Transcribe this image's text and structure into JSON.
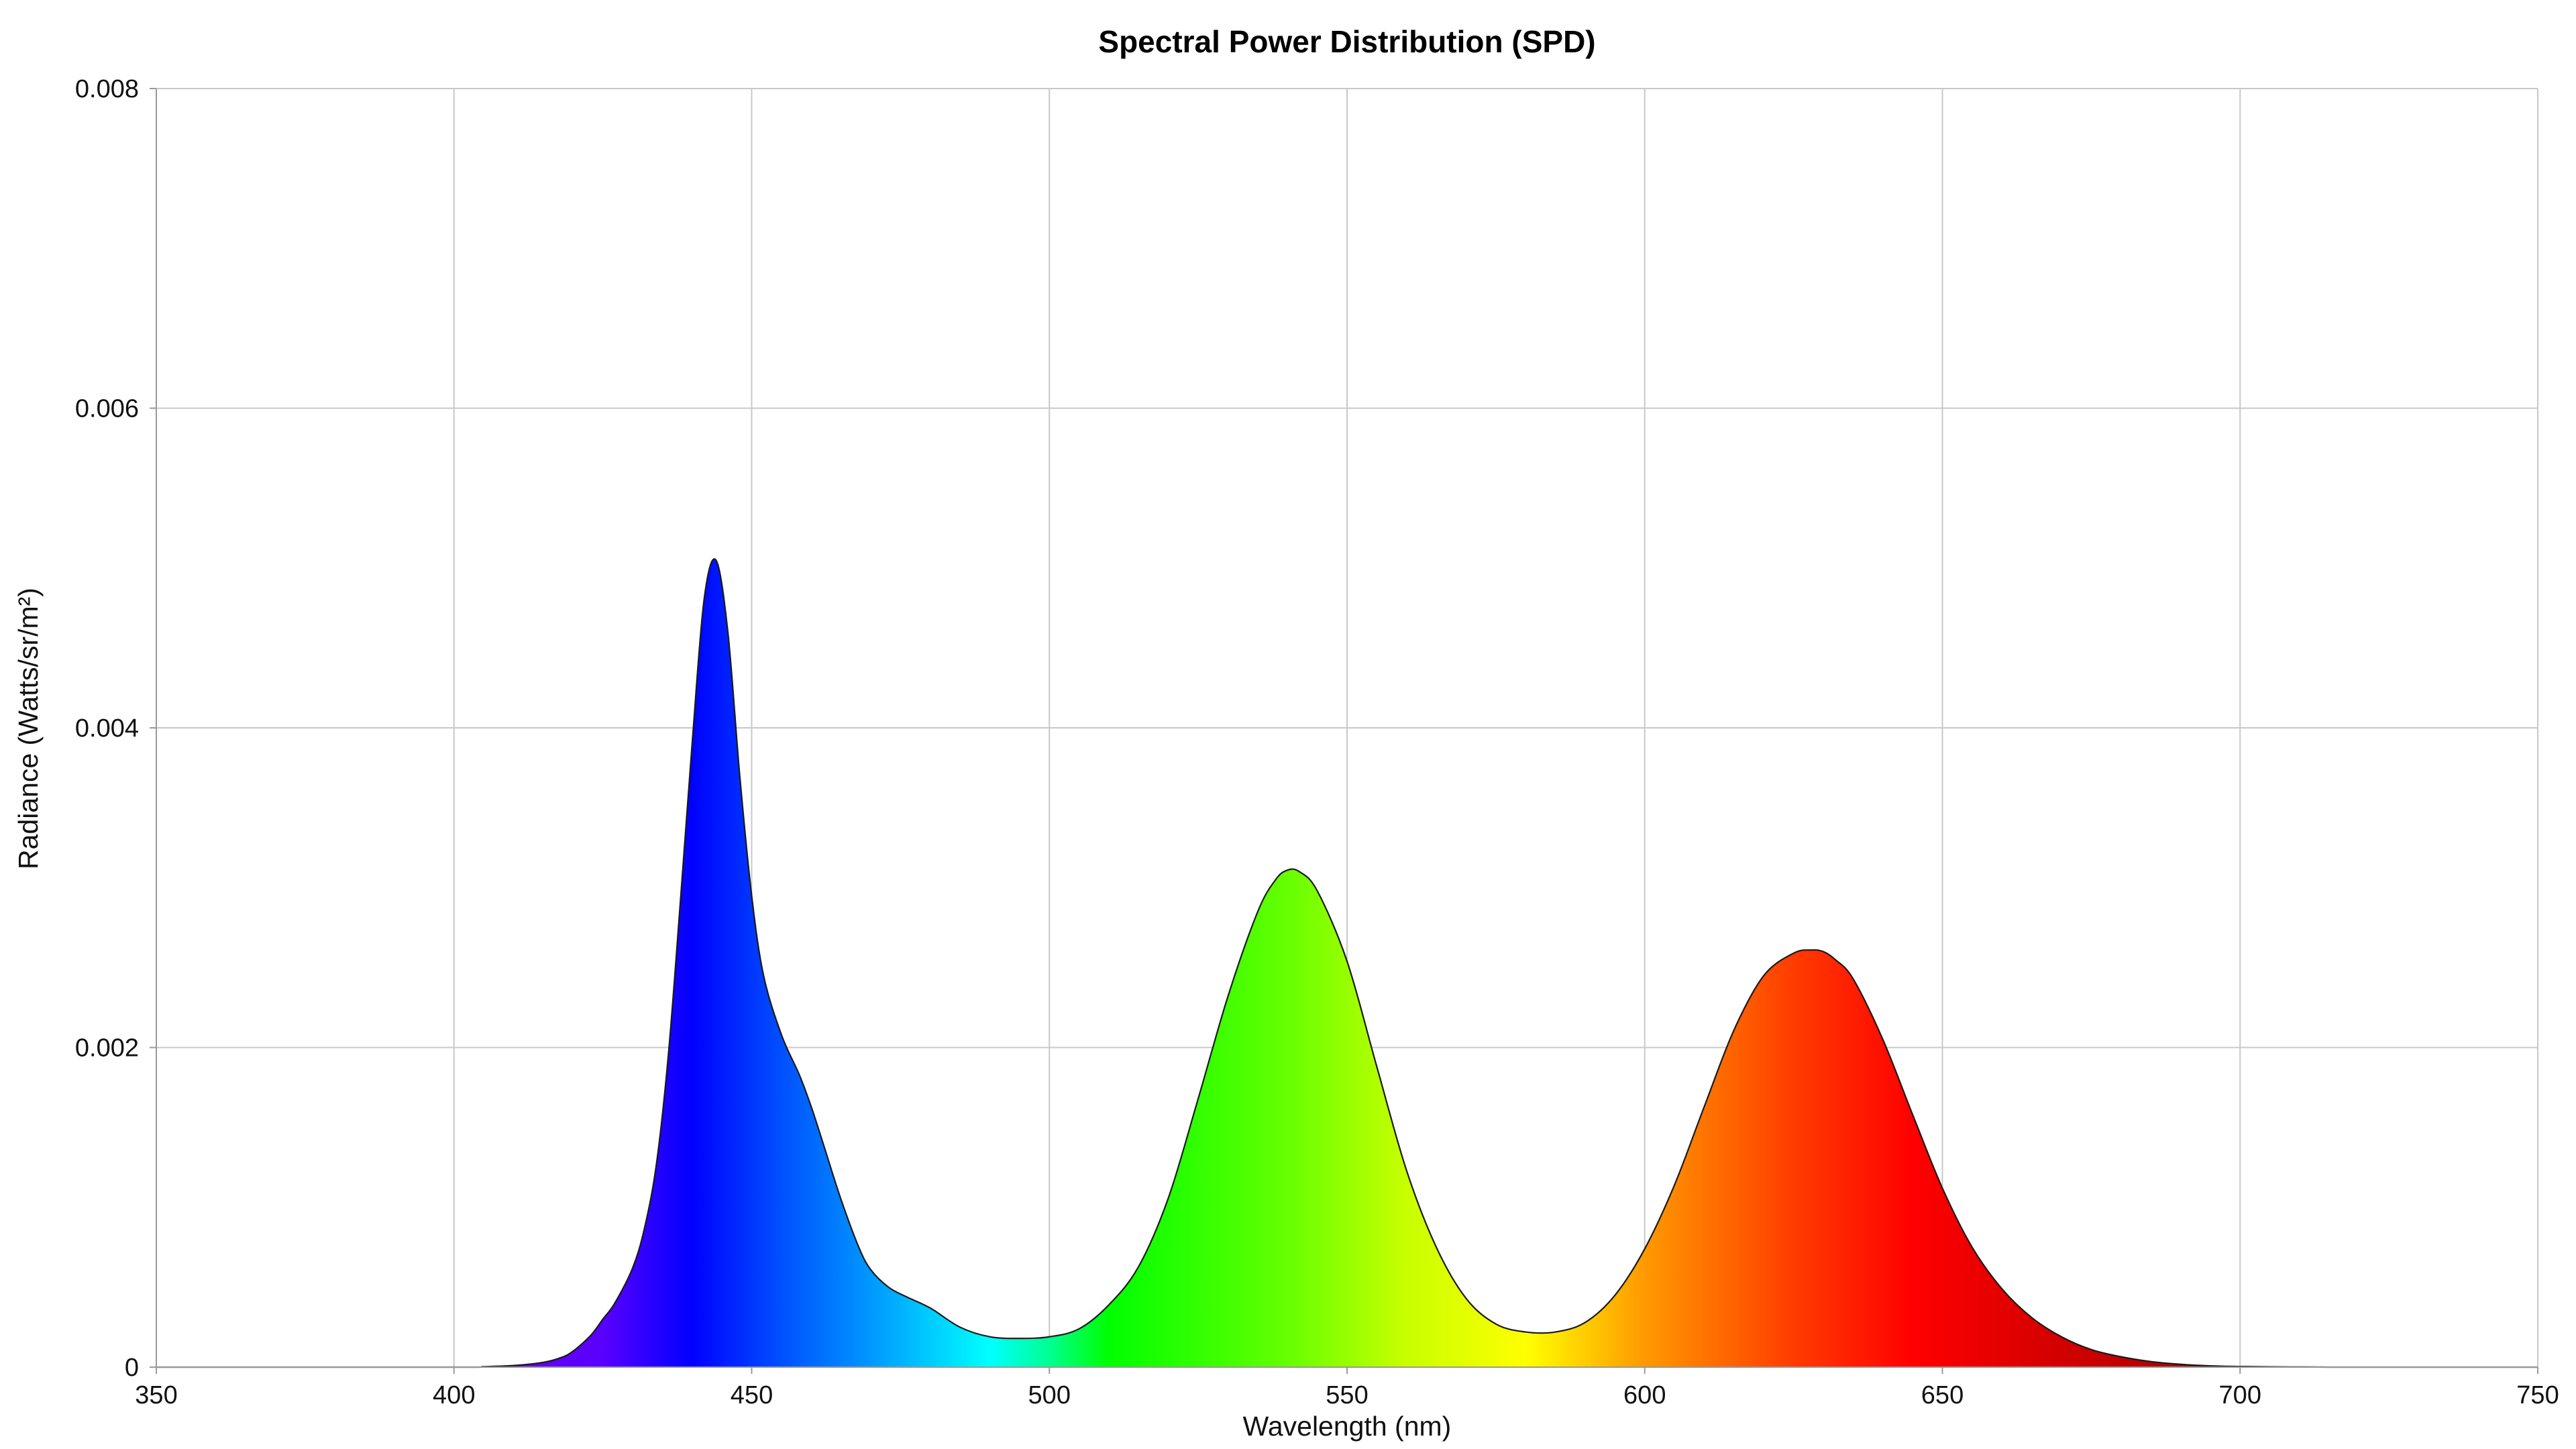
{
  "chart_data": {
    "type": "area",
    "title": "Spectral Power Distribution (SPD)",
    "xlabel": "Wavelength (nm)",
    "ylabel": "Radiance (Watts/sr/m²)",
    "xlim": [
      350,
      750
    ],
    "ylim": [
      0,
      0.008
    ],
    "x_ticks": [
      "350",
      "400",
      "450",
      "500",
      "550",
      "600",
      "650",
      "700",
      "750"
    ],
    "y_ticks": [
      "0",
      "0.002",
      "0.004",
      "0.006",
      "0.008"
    ],
    "grid": true,
    "legend": "none",
    "fill": "visible-spectrum gradient",
    "colors": {
      "gridline": "#c8c8c8",
      "outline": "#1a1a1a",
      "spectrum": [
        {
          "nm": 380,
          "color": "#7a00c8"
        },
        {
          "nm": 425,
          "color": "#5a00ff"
        },
        {
          "nm": 440,
          "color": "#0000ff"
        },
        {
          "nm": 455,
          "color": "#0050ff"
        },
        {
          "nm": 470,
          "color": "#0098ff"
        },
        {
          "nm": 490,
          "color": "#00ffff"
        },
        {
          "nm": 500,
          "color": "#00ff90"
        },
        {
          "nm": 510,
          "color": "#00ff00"
        },
        {
          "nm": 540,
          "color": "#66ff00"
        },
        {
          "nm": 560,
          "color": "#c8ff00"
        },
        {
          "nm": 580,
          "color": "#ffff00"
        },
        {
          "nm": 600,
          "color": "#ff9900"
        },
        {
          "nm": 625,
          "color": "#ff3c00"
        },
        {
          "nm": 645,
          "color": "#ff0000"
        },
        {
          "nm": 680,
          "color": "#c00000"
        },
        {
          "nm": 720,
          "color": "#700000"
        }
      ]
    },
    "x": [
      350,
      400,
      405,
      410,
      415,
      418,
      420,
      423,
      425,
      427,
      430,
      432,
      434,
      436,
      438,
      440,
      442,
      444,
      446,
      448,
      450,
      452,
      455,
      458,
      460,
      462,
      465,
      468,
      470,
      473,
      476,
      480,
      485,
      490,
      495,
      500,
      505,
      510,
      515,
      520,
      525,
      530,
      535,
      538,
      540,
      542,
      545,
      550,
      555,
      560,
      565,
      570,
      575,
      580,
      585,
      590,
      595,
      600,
      605,
      610,
      615,
      620,
      625,
      628,
      630,
      632,
      635,
      640,
      645,
      650,
      655,
      660,
      665,
      670,
      675,
      680,
      685,
      690,
      695,
      700,
      705,
      710,
      715,
      720,
      730,
      740,
      750
    ],
    "values": [
      0,
      0,
      3e-06,
      1e-05,
      3e-05,
      6e-05,
      0.0001,
      0.0002,
      0.0003,
      0.0004,
      0.00062,
      0.00087,
      0.00127,
      0.00195,
      0.0029,
      0.0039,
      0.0048,
      0.00505,
      0.0046,
      0.0037,
      0.00295,
      0.00245,
      0.00208,
      0.00183,
      0.00163,
      0.0014,
      0.00105,
      0.00075,
      0.00061,
      0.0005,
      0.00044,
      0.00037,
      0.00025,
      0.00019,
      0.00018,
      0.00019,
      0.00024,
      0.00039,
      0.00063,
      0.00106,
      0.00168,
      0.00232,
      0.00285,
      0.00305,
      0.00311,
      0.0031,
      0.00298,
      0.00254,
      0.00188,
      0.00123,
      0.00075,
      0.00043,
      0.00027,
      0.00022,
      0.00022,
      0.00028,
      0.00045,
      0.00074,
      0.00114,
      0.00163,
      0.00211,
      0.00245,
      0.00259,
      0.00261,
      0.0026,
      0.00255,
      0.00243,
      0.00205,
      0.00158,
      0.00112,
      0.00075,
      0.00049,
      0.00031,
      0.00019,
      0.00011,
      6.5e-05,
      3.5e-05,
      1.8e-05,
      8e-06,
      4e-06,
      2e-06,
      1e-06,
      0,
      0,
      0,
      0,
      0
    ]
  }
}
